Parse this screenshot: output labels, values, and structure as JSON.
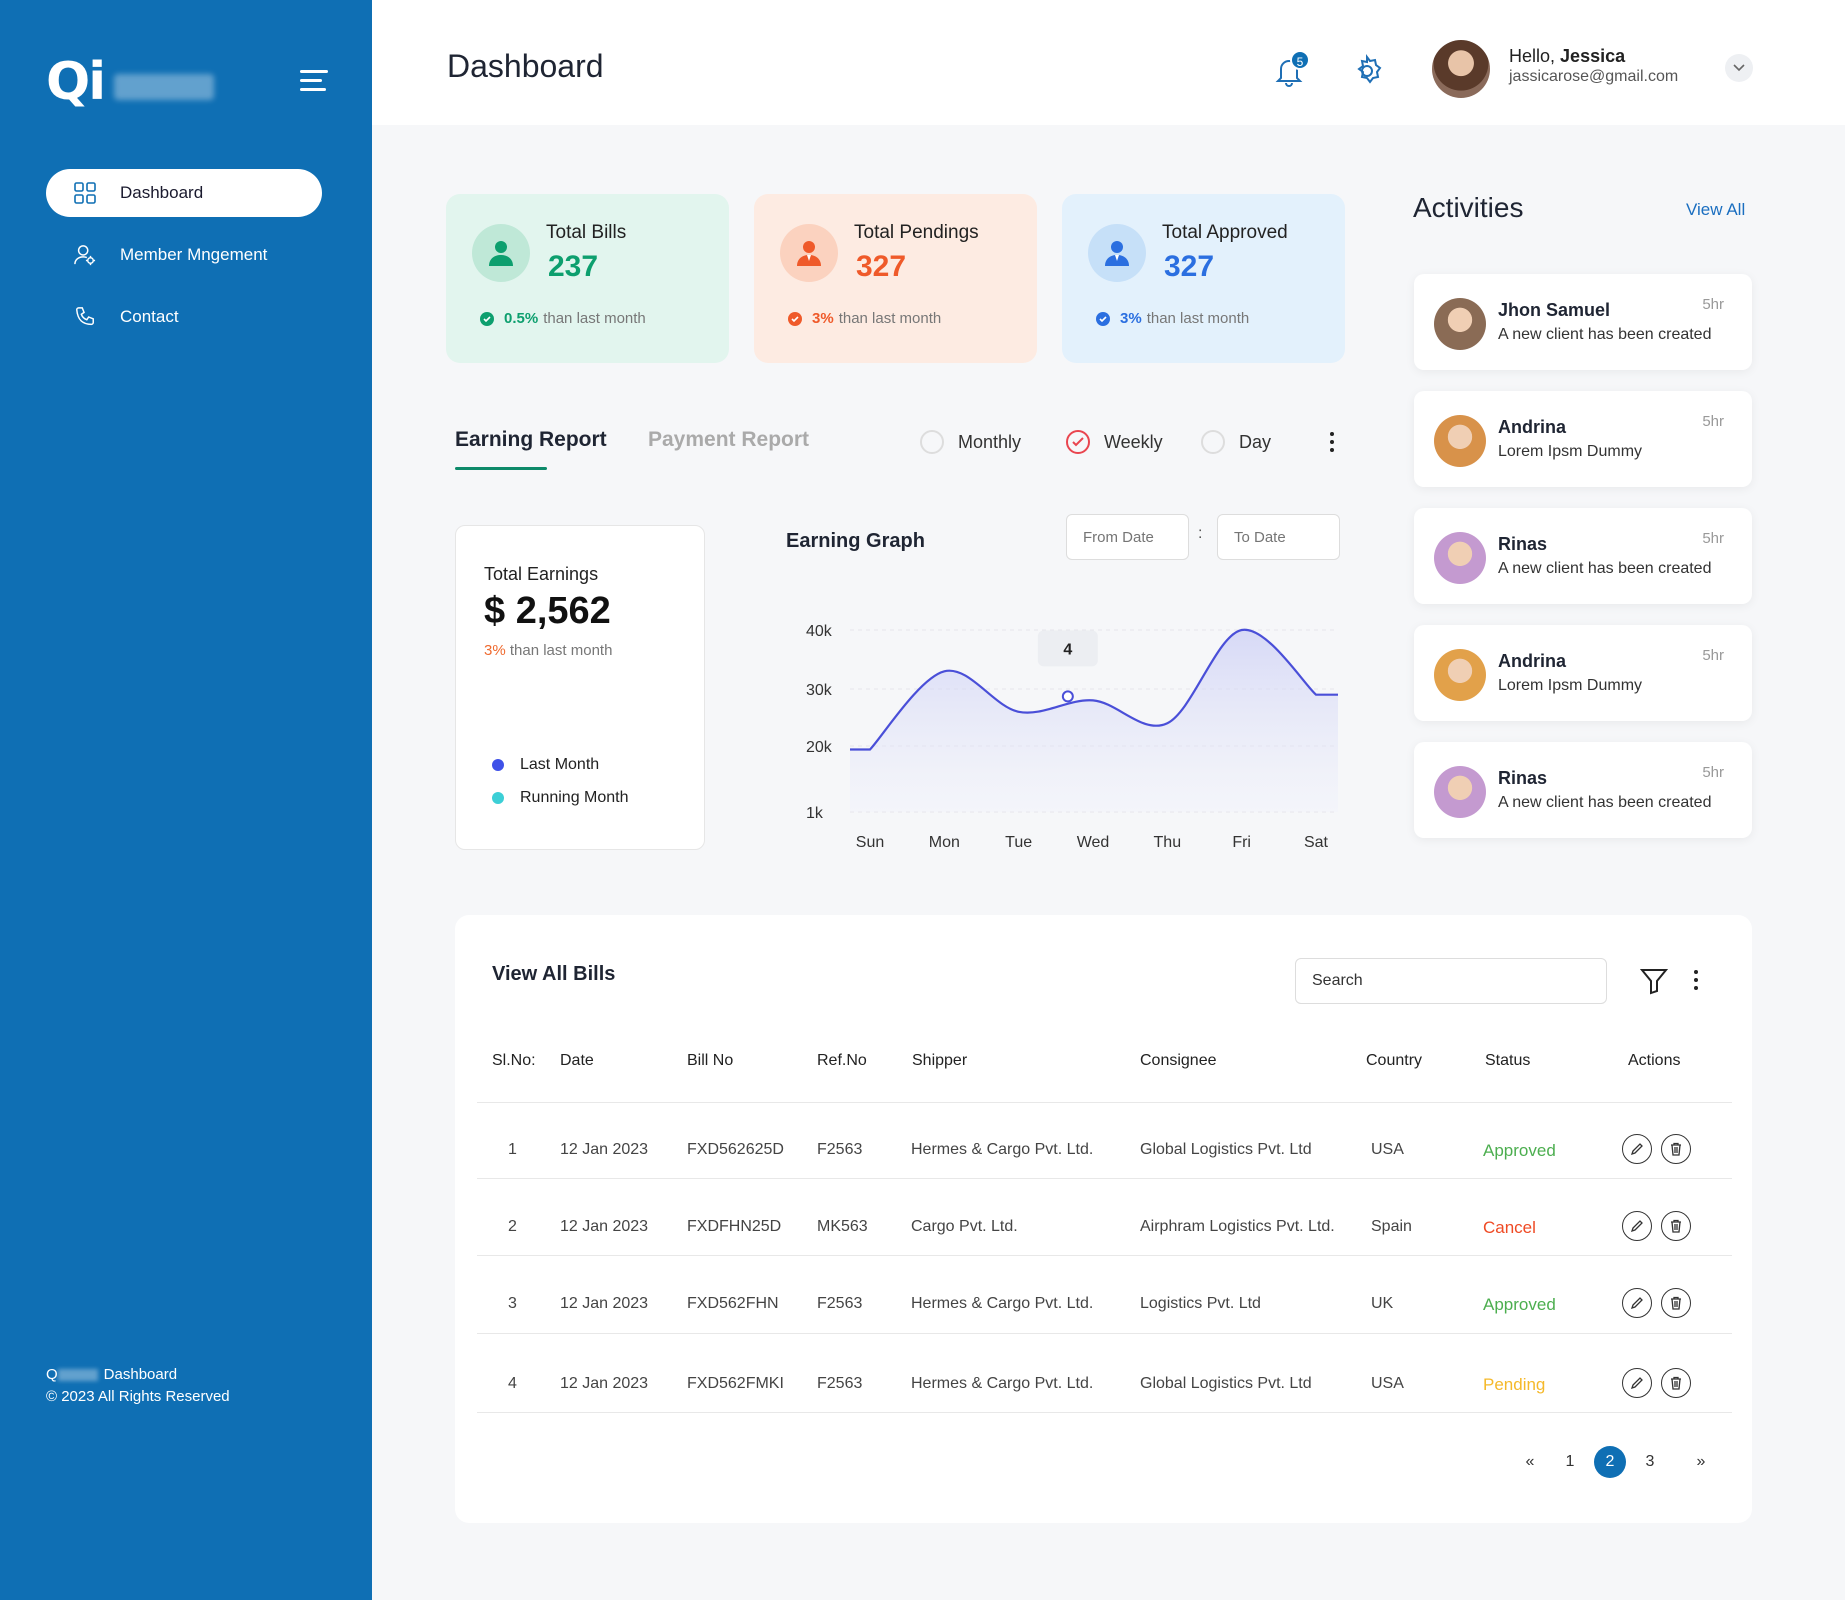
{
  "sidebar": {
    "logo": "Qi",
    "items": [
      {
        "label": "Dashboard",
        "icon": "grid-icon",
        "active": true
      },
      {
        "label": "Member Mngement",
        "icon": "user-gear-icon",
        "active": false
      },
      {
        "label": "Contact",
        "icon": "phone-icon",
        "active": false
      }
    ],
    "footer_line1_prefix": "Q",
    "footer_line1_suffix": "Dashboard",
    "footer_line2": "© 2023 All Rights Reserved"
  },
  "header": {
    "title": "Dashboard",
    "notification_count": "5",
    "greeting": "Hello,",
    "user_name": "Jessica",
    "user_email": "jassicarose@gmail.com"
  },
  "stats": [
    {
      "label": "Total Bills",
      "value": "237",
      "trend_pct": "0.5%",
      "trend_text": "than last month",
      "color": "#0d9f6e",
      "bg": "#e2f5ee",
      "circle": "#bfe8d7"
    },
    {
      "label": "Total Pendings",
      "value": "327",
      "trend_pct": "3%",
      "trend_text": "than last month",
      "color": "#ef5a2a",
      "bg": "#fdebe2",
      "circle": "#fbd2bf"
    },
    {
      "label": "Total Approved",
      "value": "327",
      "trend_pct": "3%",
      "trend_text": "than last month",
      "color": "#2b6fe0",
      "bg": "#e3f1fc",
      "circle": "#c6e0f8"
    }
  ],
  "report": {
    "tabs": [
      "Earning Report",
      "Payment Report"
    ],
    "periods": [
      "Monthly",
      "Weekly",
      "Day"
    ],
    "selected_period": "Weekly"
  },
  "earnings": {
    "title": "Total Earnings",
    "value": "$ 2,562",
    "trend_pct": "3%",
    "trend_text": "than last month",
    "legend": [
      {
        "label": "Last Month",
        "color": "#3f51e8"
      },
      {
        "label": "Running Month",
        "color": "#3ccfd6"
      }
    ]
  },
  "graph": {
    "title": "Earning Graph",
    "from_placeholder": "From Date",
    "to_placeholder": "To Date",
    "separator": ":",
    "tooltip": "4"
  },
  "chart_data": {
    "type": "line",
    "title": "Earning Graph",
    "categories": [
      "Sun",
      "Mon",
      "Tue",
      "Wed",
      "Thu",
      "Fri",
      "Sat"
    ],
    "y_ticks": [
      "40k",
      "30k",
      "20k",
      "1k"
    ],
    "series": [
      {
        "values": [
          19000,
          33000,
          26000,
          28000,
          24000,
          40000,
          29000
        ]
      }
    ],
    "highlight": {
      "category": "Wed",
      "label": "4"
    },
    "line_color": "#4a4fd8"
  },
  "activities": {
    "title": "Activities",
    "view_all": "View All",
    "items": [
      {
        "name": "Jhon Samuel",
        "message": "A new client has been created",
        "time": "5hr"
      },
      {
        "name": "Andrina",
        "message": "Lorem Ipsm Dummy",
        "time": "5hr"
      },
      {
        "name": "Rinas",
        "message": "A new client has been created",
        "time": "5hr"
      },
      {
        "name": "Andrina",
        "message": "Lorem Ipsm Dummy",
        "time": "5hr"
      },
      {
        "name": "Rinas",
        "message": "A new client has been created",
        "time": "5hr"
      }
    ]
  },
  "bills": {
    "title": "View All Bills",
    "search_placeholder": "Search",
    "columns": [
      "Sl.No:",
      "Date",
      "Bill No",
      "Ref.No",
      "Shipper",
      "Consignee",
      "Country",
      "Status",
      "Actions"
    ],
    "rows": [
      {
        "sl": "1",
        "date": "12 Jan 2023",
        "bill": "FXD562625D",
        "ref": "F2563",
        "shipper": "Hermes & Cargo Pvt. Ltd.",
        "consignee": "Global Logistics Pvt. Ltd",
        "country": "USA",
        "status": "Approved",
        "status_color": "#4cae4f"
      },
      {
        "sl": "2",
        "date": "12 Jan 2023",
        "bill": "FXDFHN25D",
        "ref": "MK563",
        "shipper": "Cargo Pvt. Ltd.",
        "consignee": "Airphram Logistics Pvt. Ltd.",
        "country": "Spain",
        "status": "Cancel",
        "status_color": "#ef4a24"
      },
      {
        "sl": "3",
        "date": "12 Jan 2023",
        "bill": "FXD562FHN",
        "ref": "F2563",
        "shipper": "Hermes & Cargo Pvt. Ltd.",
        "consignee": "Logistics Pvt. Ltd",
        "country": "UK",
        "status": "Approved",
        "status_color": "#4cae4f"
      },
      {
        "sl": "4",
        "date": "12 Jan 2023",
        "bill": "FXD562FMKI",
        "ref": "F2563",
        "shipper": "Hermes & Cargo Pvt. Ltd.",
        "consignee": "Global Logistics Pvt. Ltd",
        "country": "USA",
        "status": "Pending",
        "status_color": "#f5b92a"
      }
    ],
    "pagination": {
      "prev": "«",
      "pages": [
        "1",
        "2",
        "3"
      ],
      "current": "2",
      "next": "»"
    }
  }
}
